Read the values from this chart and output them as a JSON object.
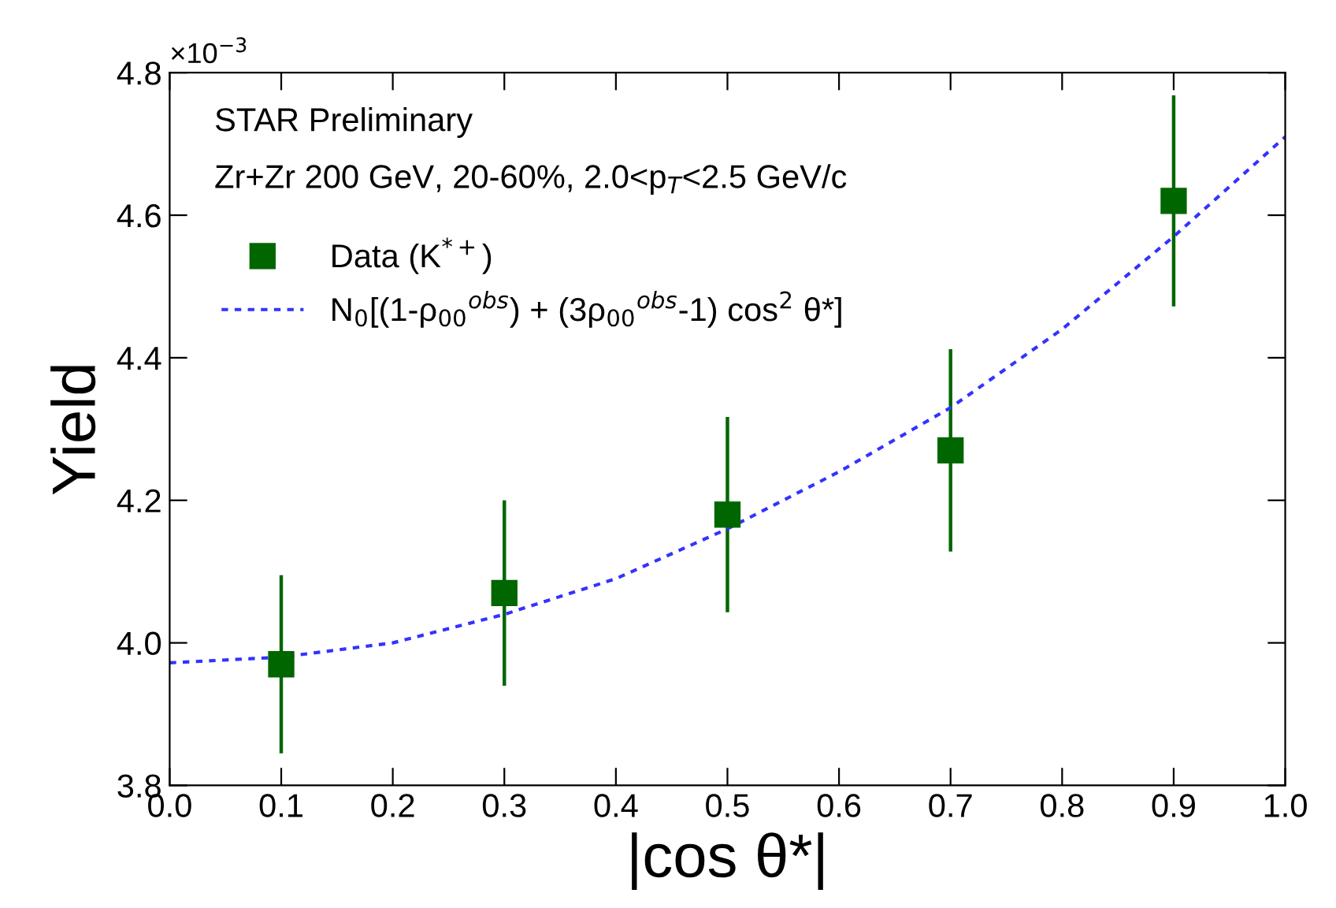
{
  "chart_data": {
    "type": "scatter",
    "xlabel": "|cos θ*|",
    "ylabel": "Yield",
    "xlim": [
      0,
      1
    ],
    "ylim": [
      3.8,
      4.8
    ],
    "xticks": [
      {
        "value": 0,
        "label": "0.0"
      },
      0.1,
      0.2,
      0.3,
      0.4,
      0.5,
      0.6,
      0.7,
      0.8,
      0.9,
      {
        "value": 1,
        "label": "1.0"
      }
    ],
    "yticks": [
      3.8,
      {
        "value": 4,
        "label": "4.0"
      },
      4.2,
      4.4,
      4.6,
      4.8
    ],
    "grid": false,
    "legend": "top left",
    "annotations": [
      "×10$^{−3}$",
      "STAR Preliminary",
      "Zr+Zr 200 GeV, 20-60%, 2.0<p$_{T}$<2.5 GeV/c"
    ],
    "series": [
      {
        "name": "Data (K$^{*+}$)",
        "color": "#006600",
        "marker": "square",
        "x": [
          0.1,
          0.3,
          0.5,
          0.7,
          0.9
        ],
        "values": [
          3.97,
          4.07,
          4.18,
          4.27,
          4.62
        ],
        "errors": [
          0.125,
          0.13,
          0.137,
          0.142,
          0.148
        ]
      },
      {
        "name": "N$_{0}$[(1-ρ$_{00}$$^{obs}$) + (3ρ$_{00}$$^{obs}$-1) cos$^{2}$ θ*]",
        "type": "line",
        "color": "#3333ff",
        "marker": "none",
        "line_style": "dotted",
        "x": [
          0,
          0.1,
          0.2,
          0.3,
          0.4,
          0.5,
          0.6,
          0.7,
          0.8,
          0.9,
          1.0
        ],
        "values": [
          3.972,
          3.98,
          4.0,
          4.04,
          4.09,
          4.16,
          4.24,
          4.33,
          4.44,
          4.57,
          4.71
        ]
      }
    ]
  }
}
